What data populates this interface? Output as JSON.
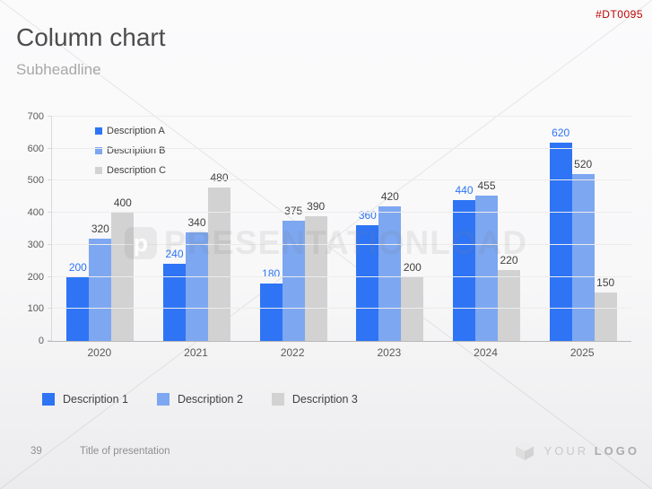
{
  "product_code": "#DT0095",
  "header": {
    "title": "Column chart",
    "subtitle": "Subheadline"
  },
  "watermark": {
    "text": "PRESENTATIONLOAD",
    "glyph": "p"
  },
  "chart_data": {
    "type": "bar",
    "title": "",
    "xlabel": "",
    "ylabel": "",
    "categories": [
      "2020",
      "2021",
      "2022",
      "2023",
      "2024",
      "2025"
    ],
    "series": [
      {
        "name": "Description A",
        "bottom_legend_name": "Description 1",
        "color": "#2e74f5",
        "label_color": "#2e74f5",
        "values": [
          200,
          240,
          180,
          360,
          440,
          620
        ]
      },
      {
        "name": "Description B",
        "bottom_legend_name": "Description 2",
        "color": "#7da7f0",
        "label_color": "#404040",
        "values": [
          320,
          340,
          375,
          420,
          455,
          520
        ]
      },
      {
        "name": "Description C",
        "bottom_legend_name": "Description 3",
        "color": "#d2d2d2",
        "label_color": "#404040",
        "values": [
          400,
          480,
          390,
          200,
          220,
          150
        ]
      }
    ],
    "ylim": [
      0,
      700
    ],
    "yticks": [
      0,
      100,
      200,
      300,
      400,
      500,
      600,
      700
    ],
    "grid": true,
    "legend_top_position": "upper-left-inside",
    "legend_bottom_position": "below-chart"
  },
  "footer": {
    "page_number": "39",
    "presentation_title": "Title of presentation",
    "logo_text_light": "YOUR",
    "logo_text_bold": "LOGO"
  }
}
